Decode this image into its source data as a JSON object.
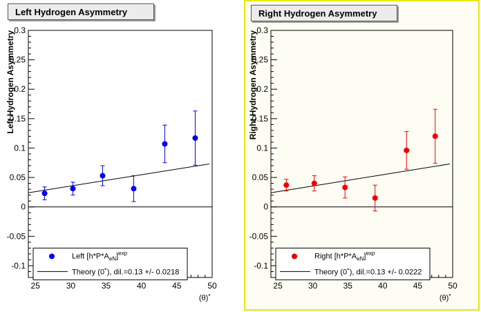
{
  "panels": [
    {
      "title": "Left Hydrogen Asymmetry",
      "ylabel": "Left Hydrogen Asymmetry",
      "xlabel": "(θ)˚",
      "legend_data": "Left [h*P*A",
      "legend_theory": "Theory (0˚), dil.=0.13 +/- 0.0218",
      "color": "#0000ee"
    },
    {
      "title": "Right Hydrogen Asymmetry",
      "ylabel": "Right Hydrogen Asymmetry",
      "xlabel": "(θ)˚",
      "legend_data": "Right [h*P*A",
      "legend_theory": "Theory (0˚), dil.=0.13 +/- 0.0222",
      "color": "#ee0000"
    }
  ],
  "legend_sub": "eN",
  "legend_sup": "exp",
  "chart_data": [
    {
      "type": "scatter",
      "title": "Left Hydrogen Asymmetry",
      "xlabel": "(θ)˚",
      "ylabel": "Left Hydrogen Asymmetry",
      "xlim": [
        24,
        50
      ],
      "ylim": [
        -0.12,
        0.3
      ],
      "xticks": [
        25,
        30,
        35,
        40,
        45,
        50
      ],
      "yticks": [
        -0.1,
        -0.05,
        0,
        0.05,
        0.1,
        0.15,
        0.2,
        0.25,
        0.3
      ],
      "ytick_labels": [
        "-0.1",
        "-0.05",
        "0",
        "0.05",
        "0.1",
        "0.15",
        "0.2",
        "0.25",
        "0.3"
      ],
      "series": [
        {
          "name": "Left [h*P*A_eN]^exp",
          "x": [
            26.3,
            30.3,
            34.5,
            38.9,
            43.3,
            47.6
          ],
          "y": [
            0.023,
            0.031,
            0.053,
            0.031,
            0.107,
            0.117
          ],
          "yerr": [
            0.011,
            0.011,
            0.017,
            0.022,
            0.032,
            0.046
          ],
          "color": "#0000ee"
        }
      ],
      "theory_line": {
        "name": "Theory (0˚), dil.=0.13 +/- 0.0218",
        "x": [
          24,
          49.6
        ],
        "y": [
          0.024,
          0.073
        ]
      }
    },
    {
      "type": "scatter",
      "title": "Right Hydrogen Asymmetry",
      "xlabel": "(θ)˚",
      "ylabel": "Right Hydrogen Asymmetry",
      "xlim": [
        24,
        50
      ],
      "ylim": [
        -0.12,
        0.3
      ],
      "xticks": [
        25,
        30,
        35,
        40,
        45,
        50
      ],
      "yticks": [
        -0.1,
        -0.05,
        0,
        0.05,
        0.1,
        0.15,
        0.2,
        0.25,
        0.3
      ],
      "ytick_labels": [
        "-0.1",
        "-0.05",
        "0",
        "0.05",
        "0.1",
        "0.15",
        "0.2",
        "0.25",
        "0.3"
      ],
      "series": [
        {
          "name": "Right [h*P*A_eN]^exp",
          "x": [
            26.2,
            30.2,
            34.6,
            38.9,
            43.4,
            47.5
          ],
          "y": [
            0.037,
            0.04,
            0.033,
            0.015,
            0.096,
            0.12
          ],
          "yerr": [
            0.01,
            0.013,
            0.018,
            0.022,
            0.032,
            0.046
          ],
          "color": "#ee0000"
        }
      ],
      "theory_line": {
        "name": "Theory (0˚), dil.=0.13 +/- 0.0222",
        "x": [
          24,
          49.6
        ],
        "y": [
          0.024,
          0.073
        ]
      }
    }
  ]
}
